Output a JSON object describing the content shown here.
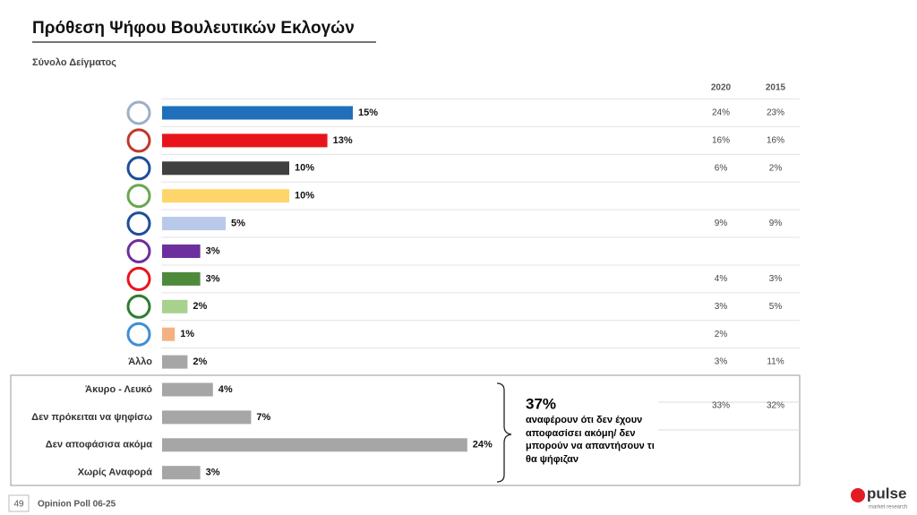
{
  "title": "Πρόθεση Ψήφου Βουλευτικών Εκλογών",
  "subtitle": "Σύνολο Δείγματος",
  "chart_data": {
    "type": "bar",
    "categories": [
      null,
      null,
      null,
      null,
      null,
      null,
      null,
      null,
      null,
      "Άλλο",
      "Άκυρο - Λευκό",
      "Δεν πρόκειται να ψηφίσω",
      "Δεν αποφάσισα ακόμα",
      "Χωρίς Αναφορά"
    ],
    "values": [
      15,
      13,
      10,
      10,
      5,
      3,
      3,
      2,
      1,
      2,
      4,
      7,
      24,
      3
    ],
    "value_labels": [
      "15%",
      "13%",
      "10%",
      "10%",
      "5%",
      "3%",
      "3%",
      "2%",
      "1%",
      "2%",
      "4%",
      "7%",
      "24%",
      "3%"
    ],
    "colors": [
      "#1f6fba",
      "#e8141c",
      "#404040",
      "#fdd56a",
      "#b8c9e9",
      "#6d2e9e",
      "#4e8a3c",
      "#a9d18e",
      "#f4b183",
      "#a6a6a6",
      "#a6a6a6",
      "#a6a6a6",
      "#a6a6a6",
      "#a6a6a6"
    ],
    "previous": {
      "columns": [
        "2020",
        "2015"
      ],
      "rows": [
        [
          "24%",
          "23%"
        ],
        [
          "16%",
          "16%"
        ],
        [
          "6%",
          "2%"
        ],
        [
          null,
          null
        ],
        [
          "9%",
          "9%"
        ],
        [
          null,
          null
        ],
        [
          "4%",
          "3%"
        ],
        [
          "3%",
          "5%"
        ],
        [
          "2%",
          null
        ],
        [
          "3%",
          "11%"
        ],
        [
          "33%",
          "32%"
        ]
      ]
    },
    "annotation": {
      "value": "37%",
      "text": "αναφέρουν ότι δεν έχουν αποφασίσει ακόμη/ δεν μπορούν να απαντήσουν τι θα ψήφιζαν"
    }
  },
  "footer": {
    "page": "49",
    "label": "Opinion Poll 06-25",
    "brand": "pulse",
    "brand_sub": "market research"
  }
}
